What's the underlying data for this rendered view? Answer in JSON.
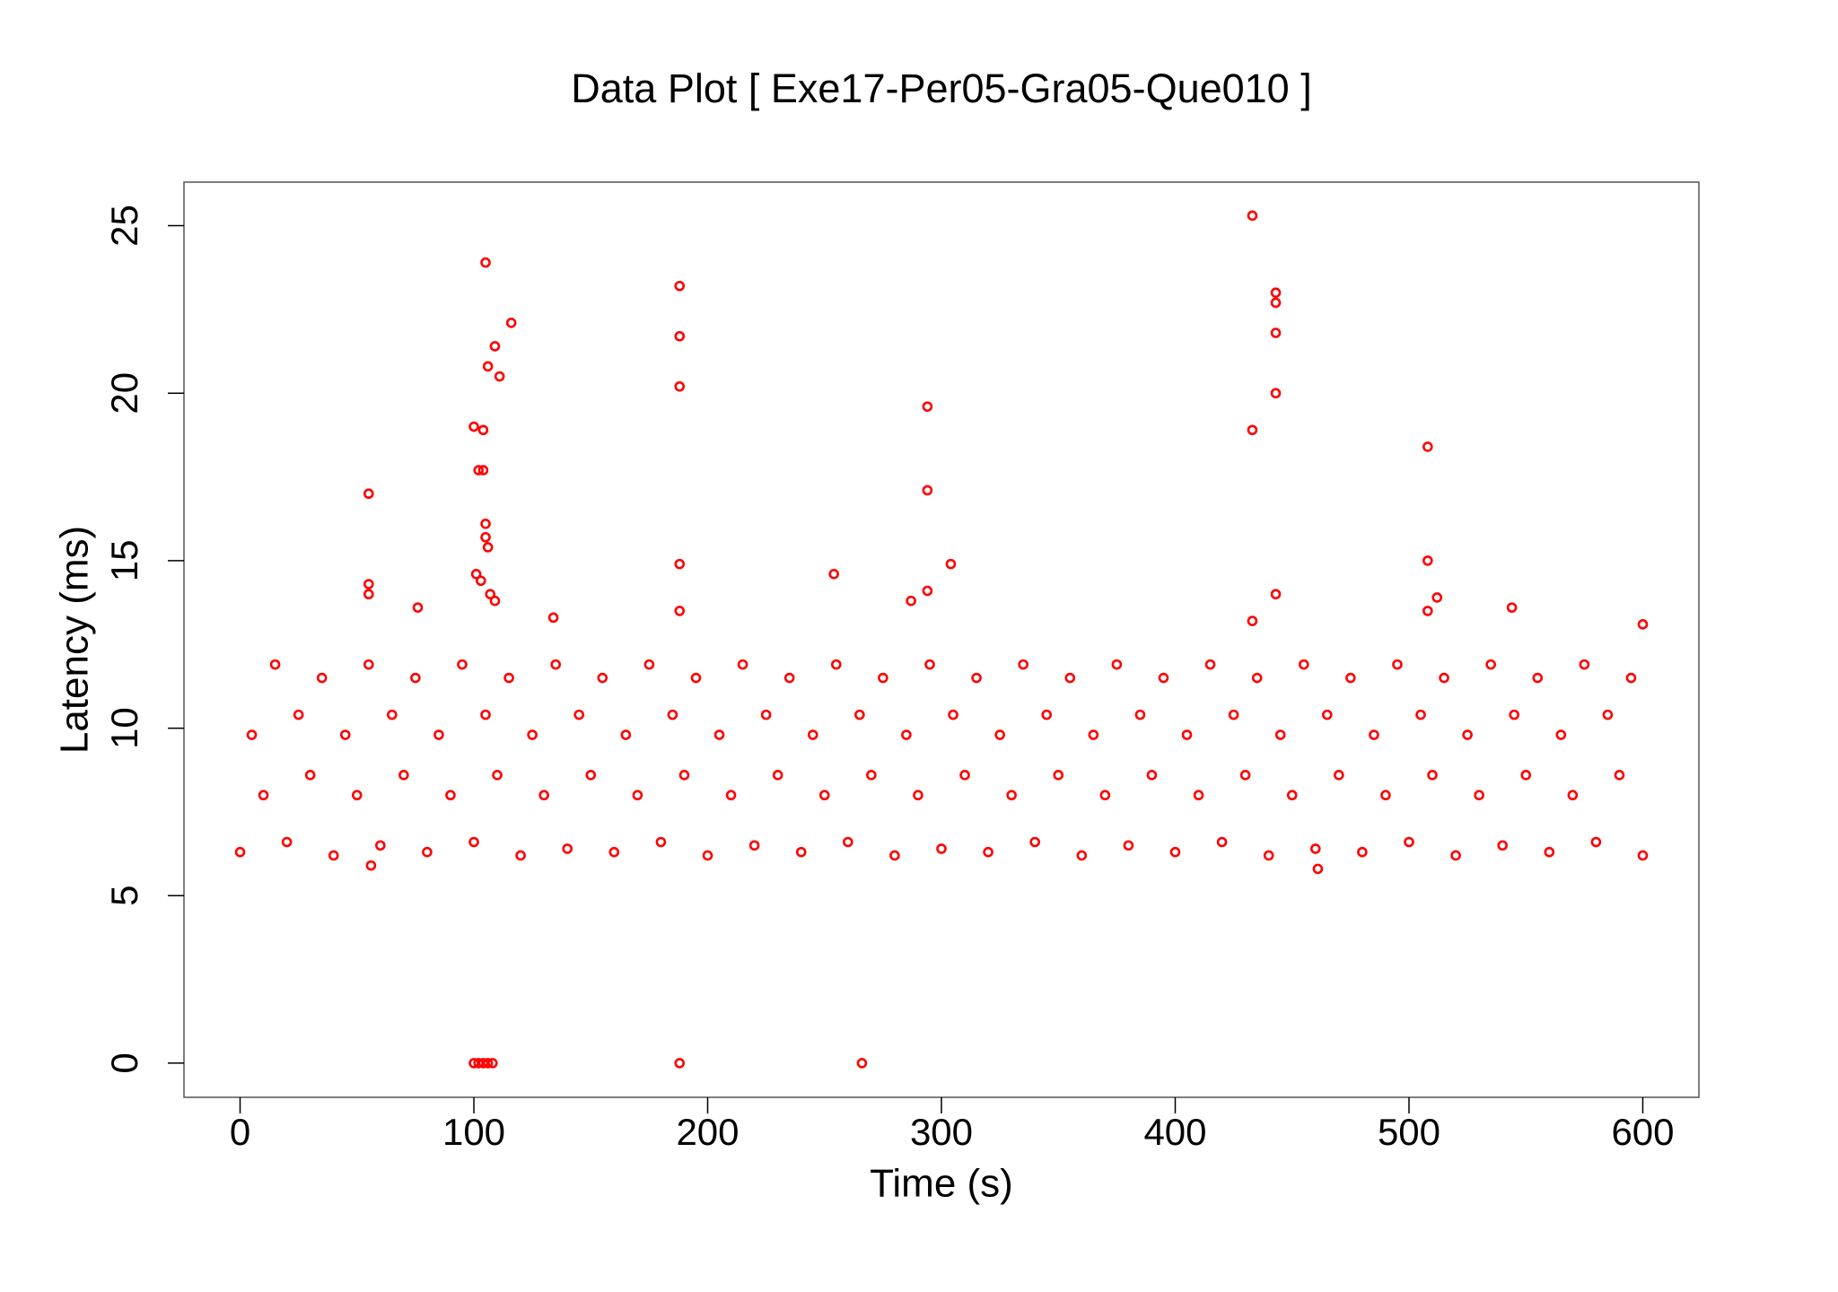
{
  "chart_data": {
    "type": "scatter",
    "title": "Data Plot [ Exe17-Per05-Gra05-Que010 ]",
    "x_label": "Time (s)",
    "y_label": "Latency (ms)",
    "color": "#ff0000",
    "xlim": [
      -24,
      624
    ],
    "ylim": [
      -1.02,
      26.3
    ],
    "xticks": [
      0,
      100,
      200,
      300,
      400,
      500,
      600
    ],
    "yticks": [
      0,
      5,
      10,
      15,
      20,
      25
    ],
    "x": [
      0,
      20,
      40,
      60,
      80,
      100,
      120,
      140,
      160,
      180,
      200,
      220,
      240,
      260,
      280,
      300,
      320,
      340,
      360,
      380,
      400,
      420,
      440,
      460,
      480,
      500,
      520,
      540,
      560,
      580,
      600,
      10,
      30,
      50,
      70,
      90,
      110,
      130,
      150,
      170,
      190,
      210,
      230,
      250,
      270,
      290,
      310,
      330,
      350,
      370,
      390,
      410,
      430,
      450,
      470,
      490,
      510,
      530,
      550,
      570,
      590,
      5,
      25,
      45,
      65,
      85,
      105,
      125,
      145,
      165,
      185,
      205,
      225,
      245,
      265,
      285,
      305,
      325,
      345,
      365,
      385,
      405,
      425,
      445,
      465,
      485,
      505,
      525,
      545,
      565,
      585,
      15,
      35,
      55,
      75,
      95,
      115,
      135,
      155,
      175,
      195,
      215,
      235,
      255,
      275,
      295,
      315,
      335,
      355,
      375,
      395,
      415,
      435,
      455,
      475,
      495,
      515,
      535,
      555,
      575,
      595,
      55,
      55,
      55,
      76,
      100,
      102,
      104,
      104,
      105,
      105,
      105,
      106,
      106,
      109,
      111,
      116,
      101,
      103,
      107,
      109,
      134,
      188,
      188,
      188,
      188,
      188,
      254,
      287,
      294,
      294,
      294,
      304,
      433,
      433,
      433,
      443,
      443,
      443,
      443,
      443,
      508,
      508,
      508,
      512,
      544,
      600,
      100,
      102,
      104,
      106,
      108,
      188,
      266,
      56,
      461
    ],
    "y": [
      6.3,
      6.6,
      6.2,
      6.5,
      6.3,
      6.6,
      6.2,
      6.4,
      6.3,
      6.6,
      6.2,
      6.5,
      6.3,
      6.6,
      6.2,
      6.4,
      6.3,
      6.6,
      6.2,
      6.5,
      6.3,
      6.6,
      6.2,
      6.4,
      6.3,
      6.6,
      6.2,
      6.5,
      6.3,
      6.6,
      6.2,
      8.0,
      8.6,
      8.0,
      8.6,
      8.0,
      8.6,
      8.0,
      8.6,
      8.0,
      8.6,
      8.0,
      8.6,
      8.0,
      8.6,
      8.0,
      8.6,
      8.0,
      8.6,
      8.0,
      8.6,
      8.0,
      8.6,
      8.0,
      8.6,
      8.0,
      8.6,
      8.0,
      8.6,
      8.0,
      8.6,
      9.8,
      10.4,
      9.8,
      10.4,
      9.8,
      10.4,
      9.8,
      10.4,
      9.8,
      10.4,
      9.8,
      10.4,
      9.8,
      10.4,
      9.8,
      10.4,
      9.8,
      10.4,
      9.8,
      10.4,
      9.8,
      10.4,
      9.8,
      10.4,
      9.8,
      10.4,
      9.8,
      10.4,
      9.8,
      10.4,
      11.9,
      11.5,
      11.9,
      11.5,
      11.9,
      11.5,
      11.9,
      11.5,
      11.9,
      11.5,
      11.9,
      11.5,
      11.9,
      11.5,
      11.9,
      11.5,
      11.9,
      11.5,
      11.9,
      11.5,
      11.9,
      11.5,
      11.9,
      11.5,
      11.9,
      11.5,
      11.9,
      11.5,
      11.9,
      11.5,
      17.0,
      14.3,
      14.0,
      13.6,
      19.0,
      17.7,
      17.7,
      18.9,
      23.9,
      16.1,
      15.7,
      15.4,
      20.8,
      21.4,
      20.5,
      22.1,
      14.6,
      14.4,
      14.0,
      13.8,
      13.3,
      23.2,
      21.7,
      20.2,
      14.9,
      13.5,
      14.6,
      13.8,
      19.6,
      17.1,
      14.1,
      14.9,
      25.3,
      18.9,
      13.2,
      23.0,
      22.7,
      21.8,
      20.0,
      14.0,
      18.4,
      15.0,
      13.5,
      13.9,
      13.6,
      13.1,
      0,
      0,
      0,
      0,
      0,
      0,
      0,
      5.9,
      5.8
    ]
  }
}
